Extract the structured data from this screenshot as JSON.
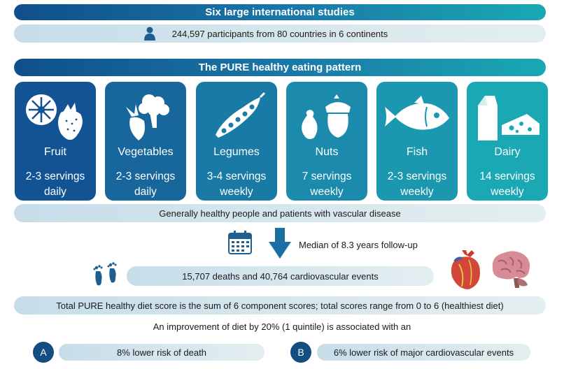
{
  "studies": {
    "title": "Six large international studies",
    "participants": "244,597 participants from 80 countries in 6 continents"
  },
  "pattern": {
    "title": "The PURE healthy eating pattern",
    "foods": [
      {
        "name": "Fruit",
        "servings_line1": "2-3 servings",
        "servings_line2": "daily",
        "icon": "fruit-icon",
        "color": "#125493"
      },
      {
        "name": "Vegetables",
        "servings_line1": "2-3 servings",
        "servings_line2": "daily",
        "icon": "vegetables-icon",
        "color": "#17679c"
      },
      {
        "name": "Legumes",
        "servings_line1": "3-4 servings",
        "servings_line2": "weekly",
        "icon": "legumes-icon",
        "color": "#1a7aa6"
      },
      {
        "name": "Nuts",
        "servings_line1": "7 servings",
        "servings_line2": "weekly",
        "icon": "nuts-icon",
        "color": "#1b8aac"
      },
      {
        "name": "Fish",
        "servings_line1": "2-3 servings",
        "servings_line2": "weekly",
        "icon": "fish-icon",
        "color": "#1b98b0"
      },
      {
        "name": "Dairy",
        "servings_line1": "14 servings",
        "servings_line2": "weekly",
        "icon": "dairy-icon",
        "color": "#1aa9b4"
      }
    ]
  },
  "population": "Generally healthy people and patients with vascular disease",
  "followup": "Median of 8.3 years follow-up",
  "events": "15,707 deaths and 40,764 cardiovascular events",
  "score_note": "Total PURE healthy diet score is the sum of 6 component scores; total scores range from 0 to 6 (healthiest diet)",
  "improvement_note": "An improvement of diet by 20% (1 quintile) is associated with an",
  "outcomes": {
    "a": {
      "letter": "A",
      "text": "8% lower risk of  death"
    },
    "b": {
      "letter": "B",
      "text": "6% lower risk of major cardiovascular events"
    }
  },
  "colors": {
    "dark_blue": "#144d82",
    "teal": "#19a9b3",
    "light_bar": "#d3e4ec"
  }
}
